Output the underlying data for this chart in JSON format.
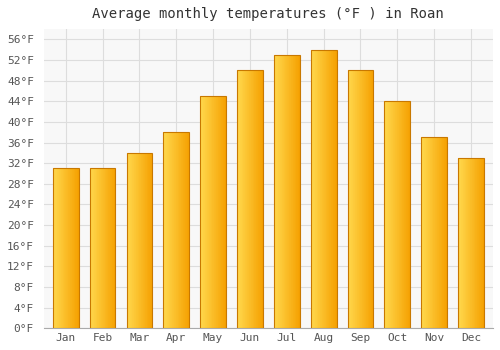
{
  "title": "Average monthly temperatures (°F ) in Roan",
  "months": [
    "Jan",
    "Feb",
    "Mar",
    "Apr",
    "May",
    "Jun",
    "Jul",
    "Aug",
    "Sep",
    "Oct",
    "Nov",
    "Dec"
  ],
  "values": [
    31,
    31,
    34,
    38,
    45,
    50,
    53,
    54,
    50,
    44,
    37,
    33
  ],
  "bar_color_left": "#FFD84D",
  "bar_color_right": "#F5A000",
  "bar_edge_color": "#C87800",
  "background_color": "#FFFFFF",
  "plot_bg_color": "#F8F8F8",
  "grid_color": "#DDDDDD",
  "ylim": [
    0,
    58
  ],
  "yticks": [
    0,
    4,
    8,
    12,
    16,
    20,
    24,
    28,
    32,
    36,
    40,
    44,
    48,
    52,
    56
  ],
  "ytick_labels": [
    "0°F",
    "4°F",
    "8°F",
    "12°F",
    "16°F",
    "20°F",
    "24°F",
    "28°F",
    "32°F",
    "36°F",
    "40°F",
    "44°F",
    "48°F",
    "52°F",
    "56°F"
  ],
  "title_fontsize": 10,
  "tick_fontsize": 8,
  "font_family": "monospace",
  "bar_width": 0.7
}
